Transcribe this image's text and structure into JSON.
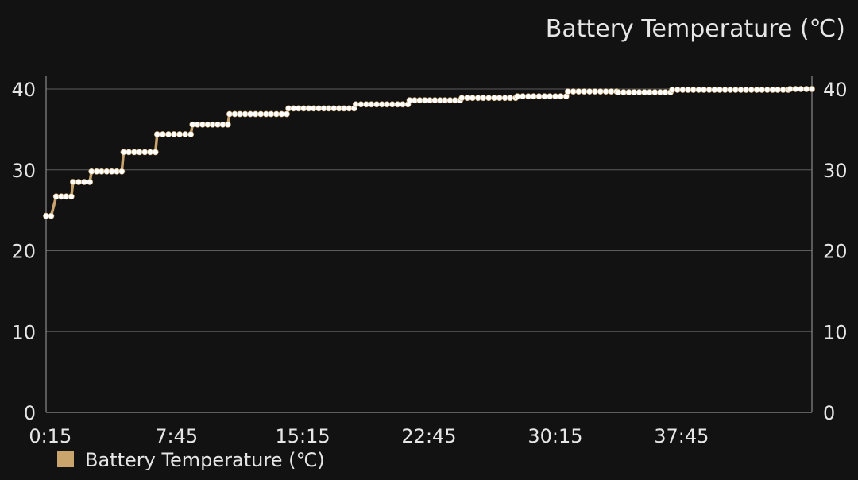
{
  "chart_data": {
    "type": "line",
    "title": "Battery Temperature (℃)",
    "xlabel": "",
    "ylabel": "",
    "x_unit": "minutes",
    "x_range": [
      0.25,
      45.5
    ],
    "ylim": [
      0,
      40
    ],
    "y_ticks": [
      0,
      10,
      20,
      30,
      40
    ],
    "y_ticks_right": [
      0,
      10,
      20,
      30,
      40
    ],
    "x_ticks": [
      {
        "value": 0.25,
        "label": "0:15"
      },
      {
        "value": 7.75,
        "label": "7:45"
      },
      {
        "value": 15.25,
        "label": "15:15"
      },
      {
        "value": 22.75,
        "label": "22:45"
      },
      {
        "value": 30.25,
        "label": "30:15"
      },
      {
        "value": 37.75,
        "label": "37:45"
      }
    ],
    "grid": true,
    "legend": {
      "position": "bottom-left",
      "entries": [
        {
          "name": "Battery Temperature (℃)",
          "color": "#c9a46d"
        }
      ]
    },
    "colors": {
      "line": "#c9a46d",
      "marker": "#ffffff",
      "grid": "#5c5c5c",
      "axis": "#8a8a8a",
      "background": "#121212"
    },
    "series": [
      {
        "name": "Battery Temperature (℃)",
        "steps": [
          {
            "x_start": 0.0,
            "x_end": 0.3,
            "y": 24.3
          },
          {
            "x_start": 0.6,
            "x_end": 1.5,
            "y": 26.7
          },
          {
            "x_start": 1.6,
            "x_end": 2.6,
            "y": 28.5
          },
          {
            "x_start": 2.7,
            "x_end": 4.5,
            "y": 29.8
          },
          {
            "x_start": 4.6,
            "x_end": 6.5,
            "y": 32.2
          },
          {
            "x_start": 6.6,
            "x_end": 8.6,
            "y": 34.4
          },
          {
            "x_start": 8.7,
            "x_end": 10.8,
            "y": 35.6
          },
          {
            "x_start": 10.9,
            "x_end": 14.3,
            "y": 36.9
          },
          {
            "x_start": 14.4,
            "x_end": 18.3,
            "y": 37.6
          },
          {
            "x_start": 18.4,
            "x_end": 21.5,
            "y": 38.1
          },
          {
            "x_start": 21.6,
            "x_end": 24.6,
            "y": 38.6
          },
          {
            "x_start": 24.7,
            "x_end": 27.9,
            "y": 38.9
          },
          {
            "x_start": 28.0,
            "x_end": 30.9,
            "y": 39.1
          },
          {
            "x_start": 31.0,
            "x_end": 33.9,
            "y": 39.7
          },
          {
            "x_start": 34.0,
            "x_end": 37.1,
            "y": 39.6
          },
          {
            "x_start": 37.2,
            "x_end": 44.1,
            "y": 39.9
          },
          {
            "x_start": 44.2,
            "x_end": 45.5,
            "y": 40.0
          }
        ]
      }
    ]
  }
}
